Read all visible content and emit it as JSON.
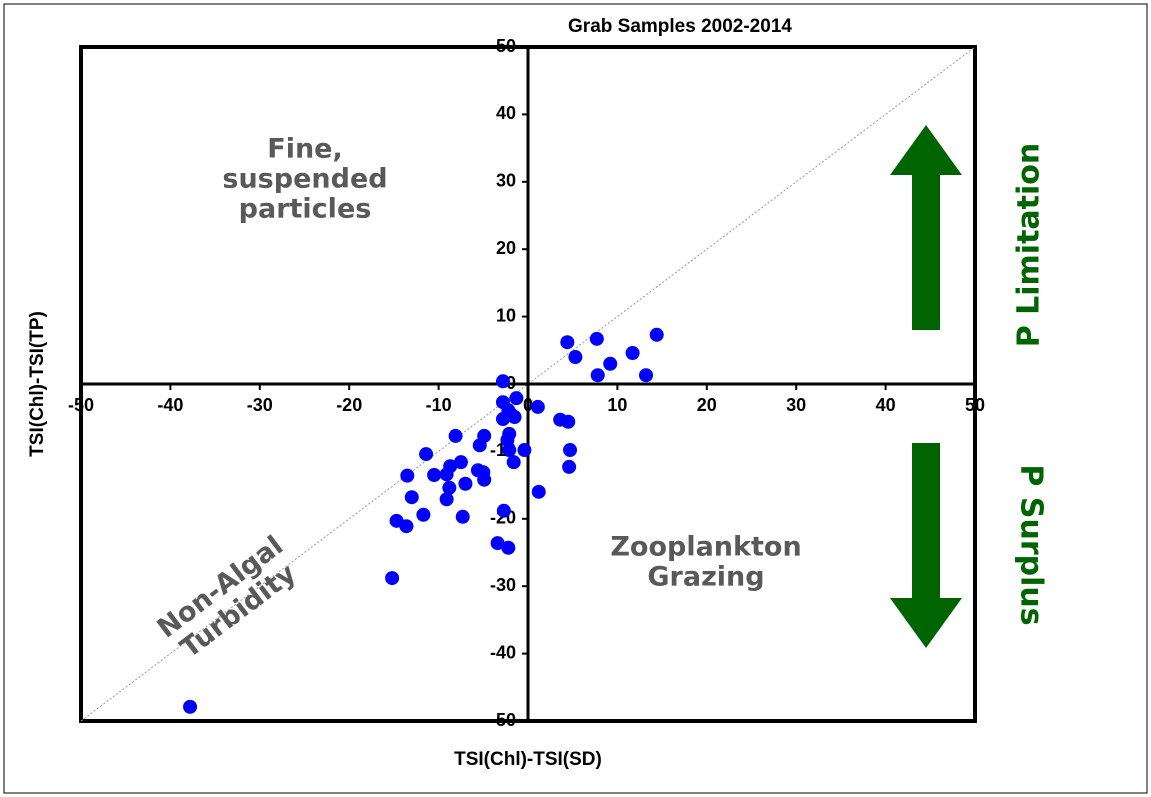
{
  "chart_data": {
    "type": "scatter",
    "title": "Grab Samples 2002-2014",
    "x_label": "TSI(Chl)-TSI(SD)",
    "y_label": "TSI(Chl)-TSI(TP)",
    "xlim": [
      -50,
      50
    ],
    "ylim": [
      -50,
      50
    ],
    "xticks": [
      -50,
      -40,
      -30,
      -20,
      -10,
      0,
      10,
      20,
      30,
      40,
      50
    ],
    "yticks": [
      -50,
      -40,
      -30,
      -20,
      -10,
      0,
      10,
      20,
      30,
      40,
      50
    ],
    "series": [
      {
        "color": "#0000ff",
        "x": [
          4.4,
          7.7,
          5.3,
          14.4,
          11.7,
          9.2,
          7.8,
          13.2,
          -2.8,
          -2.8,
          -1.3,
          -2.2,
          -1.9,
          -2.8,
          -1.5,
          1.1,
          3.6,
          4.5,
          -8.1,
          -4.9,
          -2.1,
          -2.3,
          -0.4,
          4.7,
          -2.1,
          -5.4,
          -1.6,
          4.6,
          -11.4,
          -7.5,
          -8.7,
          -10.5,
          -13.5,
          -5.6,
          -5.0,
          -9.1,
          -4.9,
          -7.0,
          -8.8,
          -13.0,
          -9.1,
          1.2,
          -11.7,
          -7.3,
          -2.7,
          -14.7,
          -13.6,
          -3.4,
          -2.2,
          -15.2,
          -37.8
        ],
        "values": [
          6.2,
          6.7,
          4.0,
          7.3,
          4.6,
          3.0,
          1.3,
          1.3,
          0.4,
          -2.7,
          -2.1,
          -3.9,
          -4.5,
          -5.2,
          -4.9,
          -3.4,
          -5.3,
          -5.6,
          -7.7,
          -7.7,
          -7.4,
          -8.3,
          -9.8,
          -9.8,
          -9.8,
          -9.1,
          -11.6,
          -12.3,
          -10.4,
          -11.6,
          -12.2,
          -13.5,
          -13.6,
          -12.8,
          -13.1,
          -13.4,
          -14.2,
          -14.8,
          -15.4,
          -16.8,
          -17.1,
          -16.0,
          -19.4,
          -19.7,
          -18.8,
          -20.3,
          -21.1,
          -23.6,
          -24.3,
          -28.8,
          -47.9
        ]
      }
    ],
    "annotations": [
      {
        "lines": [
          "Fine,",
          "suspended",
          "particles"
        ]
      },
      {
        "lines": [
          "Zooplankton",
          "Grazing"
        ]
      },
      {
        "lines": [
          "Non-Algal",
          "Turbidity"
        ]
      },
      {
        "lines": [
          "P Limitation"
        ]
      },
      {
        "lines": [
          "P Surplus"
        ]
      }
    ]
  }
}
